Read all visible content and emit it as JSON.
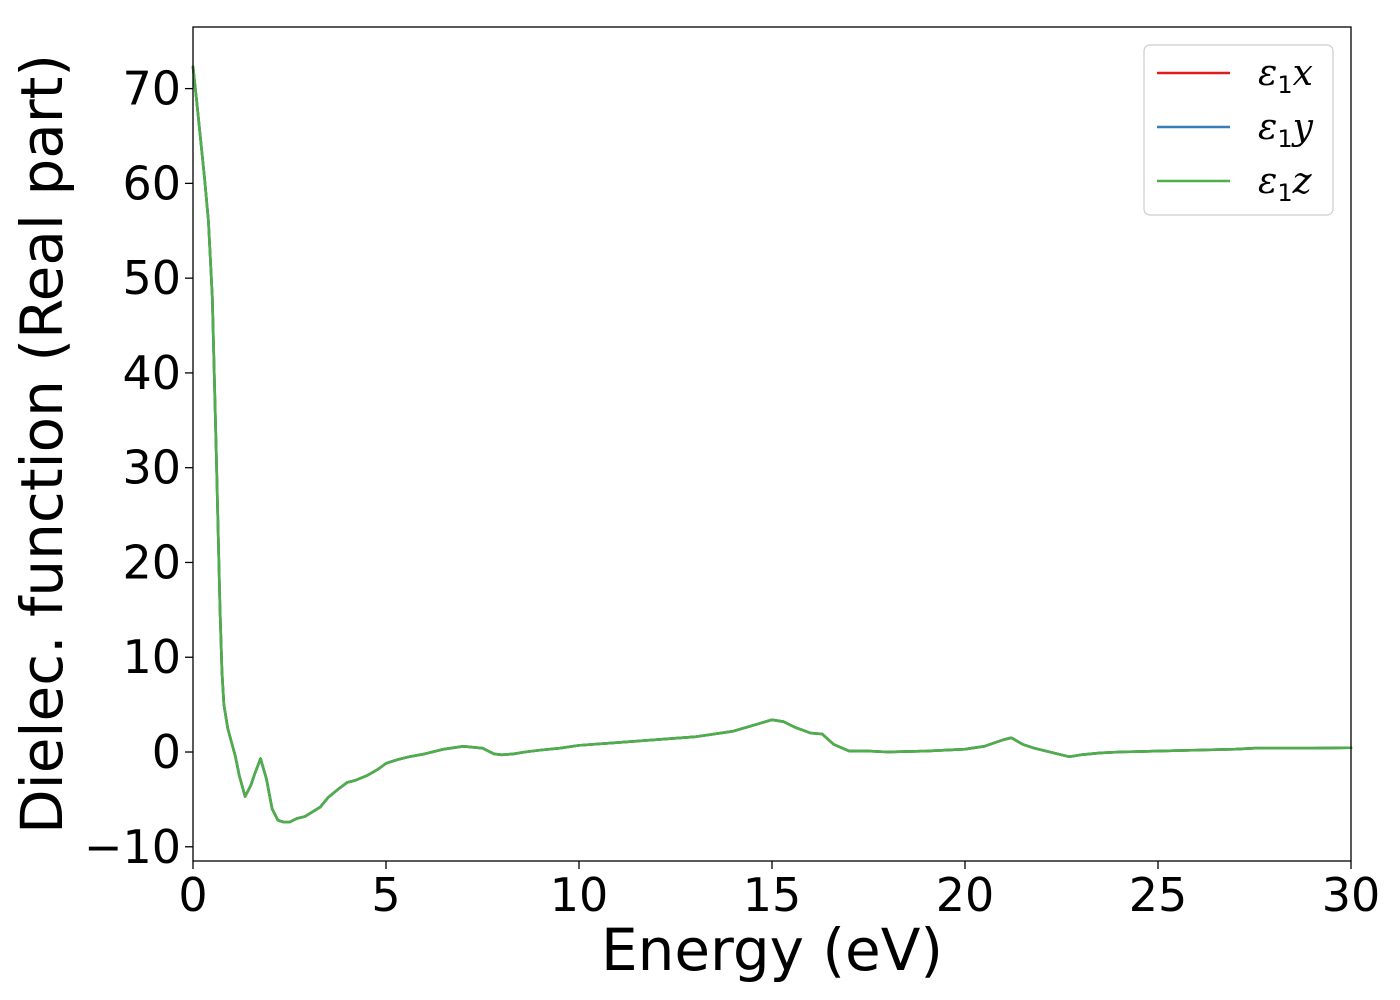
{
  "chart_data": {
    "type": "line",
    "xlabel": "Energy (eV)",
    "ylabel": "Dielec. function (Real part)",
    "xlim": [
      0,
      30
    ],
    "ylim": [
      -11.5,
      76.5
    ],
    "xticks": [
      0,
      5,
      10,
      15,
      20,
      25,
      30
    ],
    "xtick_labels": [
      "0",
      "5",
      "10",
      "15",
      "20",
      "25",
      "30"
    ],
    "yticks": [
      -10,
      0,
      10,
      20,
      30,
      40,
      50,
      60,
      70
    ],
    "ytick_labels": [
      "−10",
      "0",
      "10",
      "20",
      "30",
      "40",
      "50",
      "60",
      "70"
    ],
    "grid": false,
    "legend_position": "top-right",
    "series": [
      {
        "name": "ε",
        "sub": "1",
        "axis": "x",
        "color": "#e41a1c",
        "x": [
          0,
          0.1,
          0.2,
          0.3,
          0.4,
          0.5,
          0.6,
          0.7,
          0.75,
          0.8,
          0.9,
          1.0,
          1.1,
          1.2,
          1.35,
          1.5,
          1.6,
          1.75,
          1.9,
          2.05,
          2.2,
          2.35,
          2.5,
          2.7,
          2.9,
          3.1,
          3.3,
          3.5,
          3.8,
          4.0,
          4.2,
          4.5,
          4.8,
          5.0,
          5.3,
          5.6,
          6.0,
          6.5,
          7.0,
          7.5,
          7.8,
          8.0,
          8.3,
          8.6,
          9.0,
          9.5,
          10.0,
          11.0,
          12.0,
          13.0,
          14.0,
          14.5,
          15.0,
          15.3,
          15.6,
          16.0,
          16.3,
          16.6,
          17.0,
          17.5,
          18.0,
          19.0,
          20.0,
          20.5,
          21.0,
          21.2,
          21.5,
          21.8,
          22.2,
          22.7,
          23.0,
          23.5,
          24.0,
          25.0,
          26.0,
          27.0,
          27.5,
          28.0,
          29.0,
          30.0
        ],
        "y": [
          72.3,
          68.5,
          64.5,
          60.5,
          56.0,
          48.0,
          32.0,
          15.0,
          8.5,
          5.0,
          2.5,
          1.0,
          -0.5,
          -2.5,
          -4.7,
          -3.5,
          -2.3,
          -0.7,
          -2.8,
          -6.0,
          -7.2,
          -7.4,
          -7.4,
          -7.0,
          -6.8,
          -6.3,
          -5.8,
          -4.8,
          -3.8,
          -3.2,
          -3.0,
          -2.5,
          -1.8,
          -1.2,
          -0.8,
          -0.5,
          -0.2,
          0.3,
          0.6,
          0.4,
          -0.2,
          -0.3,
          -0.2,
          0.0,
          0.2,
          0.4,
          0.7,
          1.0,
          1.3,
          1.6,
          2.2,
          2.8,
          3.4,
          3.2,
          2.6,
          2.0,
          1.9,
          0.8,
          0.1,
          0.1,
          0.0,
          0.1,
          0.3,
          0.6,
          1.3,
          1.5,
          0.8,
          0.4,
          0.0,
          -0.5,
          -0.3,
          -0.1,
          0.0,
          0.1,
          0.2,
          0.3,
          0.4,
          0.4,
          0.4,
          0.45
        ]
      },
      {
        "name": "ε",
        "sub": "1",
        "axis": "y",
        "color": "#377eb8",
        "x": [
          0,
          0.1,
          0.2,
          0.3,
          0.4,
          0.5,
          0.6,
          0.7,
          0.75,
          0.8,
          0.9,
          1.0,
          1.1,
          1.2,
          1.35,
          1.5,
          1.6,
          1.75,
          1.9,
          2.05,
          2.2,
          2.35,
          2.5,
          2.7,
          2.9,
          3.1,
          3.3,
          3.5,
          3.8,
          4.0,
          4.2,
          4.5,
          4.8,
          5.0,
          5.3,
          5.6,
          6.0,
          6.5,
          7.0,
          7.5,
          7.8,
          8.0,
          8.3,
          8.6,
          9.0,
          9.5,
          10.0,
          11.0,
          12.0,
          13.0,
          14.0,
          14.5,
          15.0,
          15.3,
          15.6,
          16.0,
          16.3,
          16.6,
          17.0,
          17.5,
          18.0,
          19.0,
          20.0,
          20.5,
          21.0,
          21.2,
          21.5,
          21.8,
          22.2,
          22.7,
          23.0,
          23.5,
          24.0,
          25.0,
          26.0,
          27.0,
          27.5,
          28.0,
          29.0,
          30.0
        ],
        "y": [
          72.3,
          68.5,
          64.5,
          60.5,
          56.0,
          48.0,
          32.0,
          15.0,
          8.5,
          5.0,
          2.5,
          1.0,
          -0.5,
          -2.5,
          -4.7,
          -3.5,
          -2.3,
          -0.7,
          -2.8,
          -6.0,
          -7.2,
          -7.4,
          -7.4,
          -7.0,
          -6.8,
          -6.3,
          -5.8,
          -4.8,
          -3.8,
          -3.2,
          -3.0,
          -2.5,
          -1.8,
          -1.2,
          -0.8,
          -0.5,
          -0.2,
          0.3,
          0.6,
          0.4,
          -0.2,
          -0.3,
          -0.2,
          0.0,
          0.2,
          0.4,
          0.7,
          1.0,
          1.3,
          1.6,
          2.2,
          2.8,
          3.4,
          3.2,
          2.6,
          2.0,
          1.9,
          0.8,
          0.1,
          0.1,
          0.0,
          0.1,
          0.3,
          0.6,
          1.3,
          1.5,
          0.8,
          0.4,
          0.0,
          -0.5,
          -0.3,
          -0.1,
          0.0,
          0.1,
          0.2,
          0.3,
          0.4,
          0.4,
          0.4,
          0.45
        ]
      },
      {
        "name": "ε",
        "sub": "1",
        "axis": "z",
        "color": "#4daf4a",
        "x": [
          0,
          0.1,
          0.2,
          0.3,
          0.4,
          0.5,
          0.6,
          0.7,
          0.75,
          0.8,
          0.9,
          1.0,
          1.1,
          1.2,
          1.35,
          1.5,
          1.6,
          1.75,
          1.9,
          2.05,
          2.2,
          2.35,
          2.5,
          2.7,
          2.9,
          3.1,
          3.3,
          3.5,
          3.8,
          4.0,
          4.2,
          4.5,
          4.8,
          5.0,
          5.3,
          5.6,
          6.0,
          6.5,
          7.0,
          7.5,
          7.8,
          8.0,
          8.3,
          8.6,
          9.0,
          9.5,
          10.0,
          11.0,
          12.0,
          13.0,
          14.0,
          14.5,
          15.0,
          15.3,
          15.6,
          16.0,
          16.3,
          16.6,
          17.0,
          17.5,
          18.0,
          19.0,
          20.0,
          20.5,
          21.0,
          21.2,
          21.5,
          21.8,
          22.2,
          22.7,
          23.0,
          23.5,
          24.0,
          25.0,
          26.0,
          27.0,
          27.5,
          28.0,
          29.0,
          30.0
        ],
        "y": [
          72.3,
          68.5,
          64.5,
          60.5,
          56.0,
          48.0,
          32.0,
          15.0,
          8.5,
          5.0,
          2.5,
          1.0,
          -0.5,
          -2.5,
          -4.7,
          -3.5,
          -2.3,
          -0.7,
          -2.8,
          -6.0,
          -7.2,
          -7.4,
          -7.4,
          -7.0,
          -6.8,
          -6.3,
          -5.8,
          -4.8,
          -3.8,
          -3.2,
          -3.0,
          -2.5,
          -1.8,
          -1.2,
          -0.8,
          -0.5,
          -0.2,
          0.3,
          0.6,
          0.4,
          -0.2,
          -0.3,
          -0.2,
          0.0,
          0.2,
          0.4,
          0.7,
          1.0,
          1.3,
          1.6,
          2.2,
          2.8,
          3.4,
          3.2,
          2.6,
          2.0,
          1.9,
          0.8,
          0.1,
          0.1,
          0.0,
          0.1,
          0.3,
          0.6,
          1.3,
          1.5,
          0.8,
          0.4,
          0.0,
          -0.5,
          -0.3,
          -0.1,
          0.0,
          0.1,
          0.2,
          0.3,
          0.4,
          0.4,
          0.4,
          0.45
        ]
      }
    ]
  }
}
